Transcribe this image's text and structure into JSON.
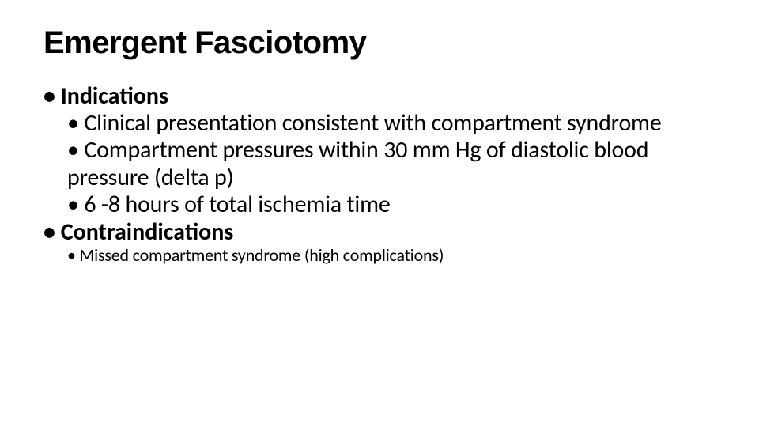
{
  "slide": {
    "title": "Emergent Fasciotomy",
    "title_fontsize": 40,
    "title_fontweight": 700,
    "title_color": "#000000",
    "body_fontsize_l1": 30,
    "body_fontsize_l2": 30,
    "body_fontsize_l2_small": 22,
    "body_color": "#000000",
    "background_color": "#ffffff"
  },
  "content": {
    "section1": {
      "heading": "• Indications",
      "items": [
        "• Clinical presentation consistent with compartment syndrome",
        "• Compartment pressures within 30 mm Hg of diastolic blood pressure (delta p)",
        "•  6 -8 hours of total ischemia time"
      ]
    },
    "section2": {
      "heading": "• Contraindications",
      "items_small": [
        "• Missed compartment syndrome (high complications)"
      ]
    }
  }
}
